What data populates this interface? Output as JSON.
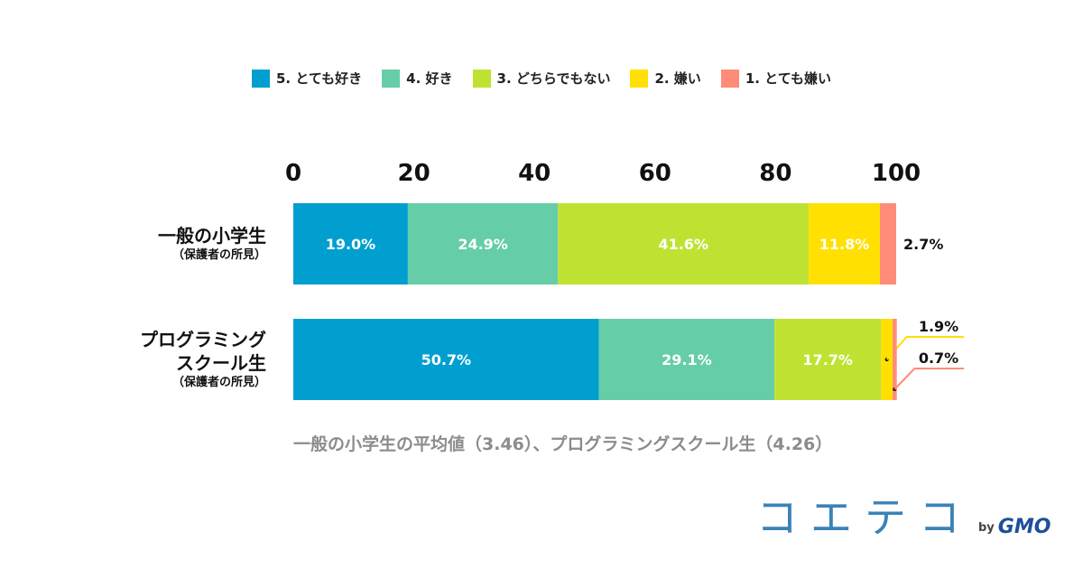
{
  "chart_data": {
    "type": "bar",
    "orientation": "horizontal-stacked",
    "x_ticks": [
      "0",
      "20",
      "40",
      "60",
      "80",
      "100"
    ],
    "xlim": [
      0,
      100
    ],
    "grid": false,
    "legend_position": "top-center",
    "series": [
      {
        "name": "5. とても好き",
        "color": "#009fd0",
        "values": [
          19.0,
          50.7
        ],
        "labels": [
          "19.0%",
          "50.7%"
        ]
      },
      {
        "name": "4. 好き",
        "color": "#65cea8",
        "values": [
          24.9,
          29.1
        ],
        "labels": [
          "24.9%",
          "29.1%"
        ]
      },
      {
        "name": "3. どちらでもない",
        "color": "#bfe232",
        "values": [
          41.6,
          17.7
        ],
        "labels": [
          "41.6%",
          "17.7%"
        ]
      },
      {
        "name": "2. 嫌い",
        "color": "#ffe000",
        "values": [
          11.8,
          1.9
        ],
        "labels": [
          "11.8%",
          "1.9%"
        ]
      },
      {
        "name": "1. とても嫌い",
        "color": "#ff8c78",
        "values": [
          2.7,
          0.7
        ],
        "labels": [
          "2.7%",
          "0.7%"
        ]
      }
    ],
    "categories": [
      {
        "main": [
          "一般の小学生"
        ],
        "sub": "（保護者の所見）"
      },
      {
        "main": [
          "プログラミング",
          "スクール生"
        ],
        "sub": "（保護者の所見）"
      }
    ]
  },
  "footnote": "一般の小学生の平均値（3.46）、プログラミングスクール生（4.26）",
  "logo": {
    "main": "コエテコ",
    "by": "by",
    "brand": "GMO"
  }
}
